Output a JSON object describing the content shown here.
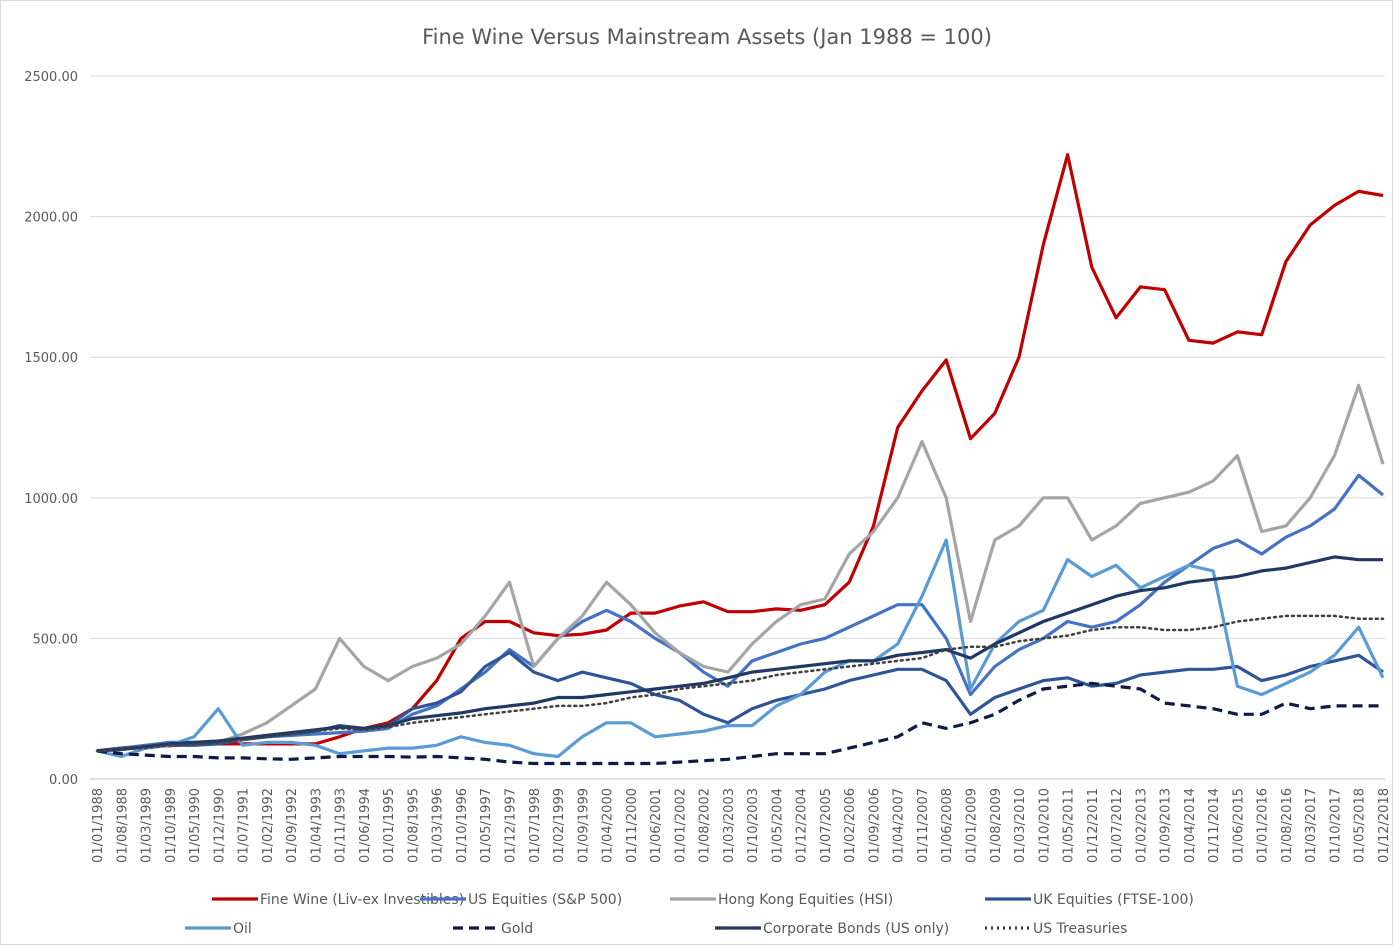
{
  "chart_data": {
    "type": "line",
    "title": "Fine Wine Versus Mainstream Assets (Jan 1988 = 100)",
    "categories": [
      "01/01/1988",
      "01/08/1988",
      "01/03/1989",
      "01/10/1989",
      "01/05/1990",
      "01/12/1990",
      "01/07/1991",
      "01/02/1992",
      "01/09/1992",
      "01/04/1993",
      "01/11/1993",
      "01/06/1994",
      "01/01/1995",
      "01/08/1995",
      "01/03/1996",
      "01/10/1996",
      "01/05/1997",
      "01/12/1997",
      "01/07/1998",
      "01/02/1999",
      "01/09/1999",
      "01/04/2000",
      "01/11/2000",
      "01/06/2001",
      "01/01/2002",
      "01/08/2002",
      "01/03/2003",
      "01/10/2003",
      "01/05/2004",
      "01/12/2004",
      "01/07/2005",
      "01/02/2006",
      "01/09/2006",
      "01/04/2007",
      "01/11/2007",
      "01/06/2008",
      "01/01/2009",
      "01/08/2009",
      "01/03/2010",
      "01/10/2010",
      "01/05/2011",
      "01/12/2011",
      "01/07/2012",
      "01/02/2013",
      "01/09/2013",
      "01/04/2014",
      "01/11/2014",
      "01/06/2015",
      "01/01/2016",
      "01/08/2016",
      "01/03/2017",
      "01/10/2017",
      "01/05/2018",
      "01/12/2018"
    ],
    "ylim": [
      0,
      2500
    ],
    "yticks": [
      {
        "value": 0,
        "label": "0.00"
      },
      {
        "value": 500,
        "label": "500.00"
      },
      {
        "value": 1000,
        "label": "1000.00"
      },
      {
        "value": 1500,
        "label": "1500.00"
      },
      {
        "value": 2000,
        "label": "2000.00"
      },
      {
        "value": 2500,
        "label": "2500.00"
      }
    ],
    "grid": true,
    "series": [
      {
        "name": "Fine Wine (Liv-ex Investibles)",
        "color": "#c00000",
        "style": "solid",
        "values": [
          100,
          110,
          115,
          118,
          125,
          125,
          125,
          125,
          125,
          125,
          150,
          180,
          200,
          250,
          350,
          500,
          560,
          560,
          520,
          510,
          515,
          530,
          590,
          590,
          615,
          630,
          595,
          595,
          605,
          600,
          620,
          700,
          900,
          1250,
          1380,
          1490,
          1210,
          1300,
          1500,
          1900,
          2220,
          1820,
          1640,
          1750,
          1740,
          1560,
          1550,
          1590,
          1580,
          1840,
          1970,
          2040,
          2090,
          2075
        ]
      },
      {
        "name": "US Equities (S&P 500)",
        "color": "#4472c4",
        "style": "solid",
        "values": [
          100,
          110,
          120,
          130,
          130,
          130,
          140,
          150,
          155,
          160,
          165,
          170,
          180,
          230,
          260,
          320,
          380,
          460,
          400,
          500,
          560,
          600,
          560,
          500,
          450,
          380,
          330,
          420,
          450,
          480,
          500,
          540,
          580,
          620,
          620,
          500,
          300,
          400,
          460,
          500,
          560,
          540,
          560,
          620,
          700,
          760,
          820,
          850,
          800,
          860,
          900,
          960,
          1080,
          1010
        ]
      },
      {
        "name": "Hong Kong Equities (HSI)",
        "color": "#a5a5a5",
        "style": "solid",
        "values": [
          100,
          105,
          115,
          120,
          130,
          130,
          160,
          200,
          260,
          320,
          500,
          400,
          350,
          400,
          430,
          480,
          580,
          700,
          400,
          500,
          580,
          700,
          620,
          520,
          450,
          400,
          380,
          480,
          560,
          620,
          640,
          800,
          880,
          1000,
          1200,
          1000,
          560,
          850,
          900,
          1000,
          1000,
          850,
          900,
          980,
          1000,
          1020,
          1060,
          1150,
          880,
          900,
          1000,
          1150,
          1400,
          1120
        ]
      },
      {
        "name": "UK Equities (FTSE-100)",
        "color": "#2f5597",
        "style": "solid",
        "values": [
          100,
          110,
          115,
          120,
          120,
          125,
          140,
          150,
          160,
          170,
          190,
          180,
          190,
          250,
          270,
          310,
          400,
          450,
          380,
          350,
          380,
          360,
          340,
          300,
          280,
          230,
          200,
          250,
          280,
          300,
          320,
          350,
          370,
          390,
          390,
          350,
          230,
          290,
          320,
          350,
          360,
          330,
          340,
          370,
          380,
          390,
          390,
          400,
          350,
          370,
          400,
          420,
          440,
          380
        ]
      },
      {
        "name": "Oil",
        "color": "#5b9bd5",
        "style": "solid",
        "values": [
          100,
          80,
          110,
          120,
          150,
          250,
          120,
          130,
          130,
          120,
          90,
          100,
          110,
          110,
          120,
          150,
          130,
          120,
          90,
          80,
          150,
          200,
          200,
          150,
          160,
          170,
          190,
          190,
          260,
          300,
          380,
          420,
          420,
          480,
          650,
          850,
          320,
          480,
          560,
          600,
          780,
          720,
          760,
          680,
          720,
          760,
          740,
          330,
          300,
          340,
          380,
          440,
          540,
          360
        ]
      },
      {
        "name": "Gold",
        "color": "#0e1c45",
        "style": "dashed",
        "values": [
          100,
          90,
          85,
          80,
          80,
          75,
          75,
          72,
          70,
          75,
          80,
          80,
          80,
          78,
          80,
          75,
          70,
          60,
          55,
          55,
          55,
          55,
          55,
          55,
          60,
          65,
          70,
          80,
          90,
          90,
          90,
          110,
          130,
          150,
          200,
          180,
          200,
          230,
          280,
          320,
          330,
          340,
          330,
          320,
          270,
          260,
          250,
          230,
          230,
          270,
          250,
          260,
          260,
          260
        ]
      },
      {
        "name": "Corporate Bonds (US only)",
        "color": "#203864",
        "style": "solid",
        "values": [
          100,
          105,
          115,
          125,
          130,
          135,
          145,
          155,
          165,
          175,
          185,
          180,
          190,
          215,
          225,
          235,
          250,
          260,
          270,
          290,
          290,
          300,
          310,
          320,
          330,
          340,
          360,
          380,
          390,
          400,
          410,
          420,
          420,
          440,
          450,
          460,
          430,
          480,
          520,
          560,
          590,
          620,
          650,
          670,
          680,
          700,
          710,
          720,
          740,
          750,
          770,
          790,
          780,
          780
        ]
      },
      {
        "name": "US Treasuries",
        "color": "#404040",
        "style": "dotted",
        "values": [
          100,
          105,
          110,
          120,
          125,
          130,
          140,
          150,
          160,
          170,
          180,
          175,
          185,
          200,
          210,
          220,
          230,
          240,
          250,
          260,
          260,
          270,
          290,
          300,
          320,
          330,
          340,
          350,
          370,
          380,
          390,
          400,
          410,
          420,
          430,
          460,
          470,
          470,
          490,
          500,
          510,
          530,
          540,
          540,
          530,
          530,
          540,
          560,
          570,
          580,
          580,
          580,
          570,
          570
        ]
      }
    ]
  }
}
